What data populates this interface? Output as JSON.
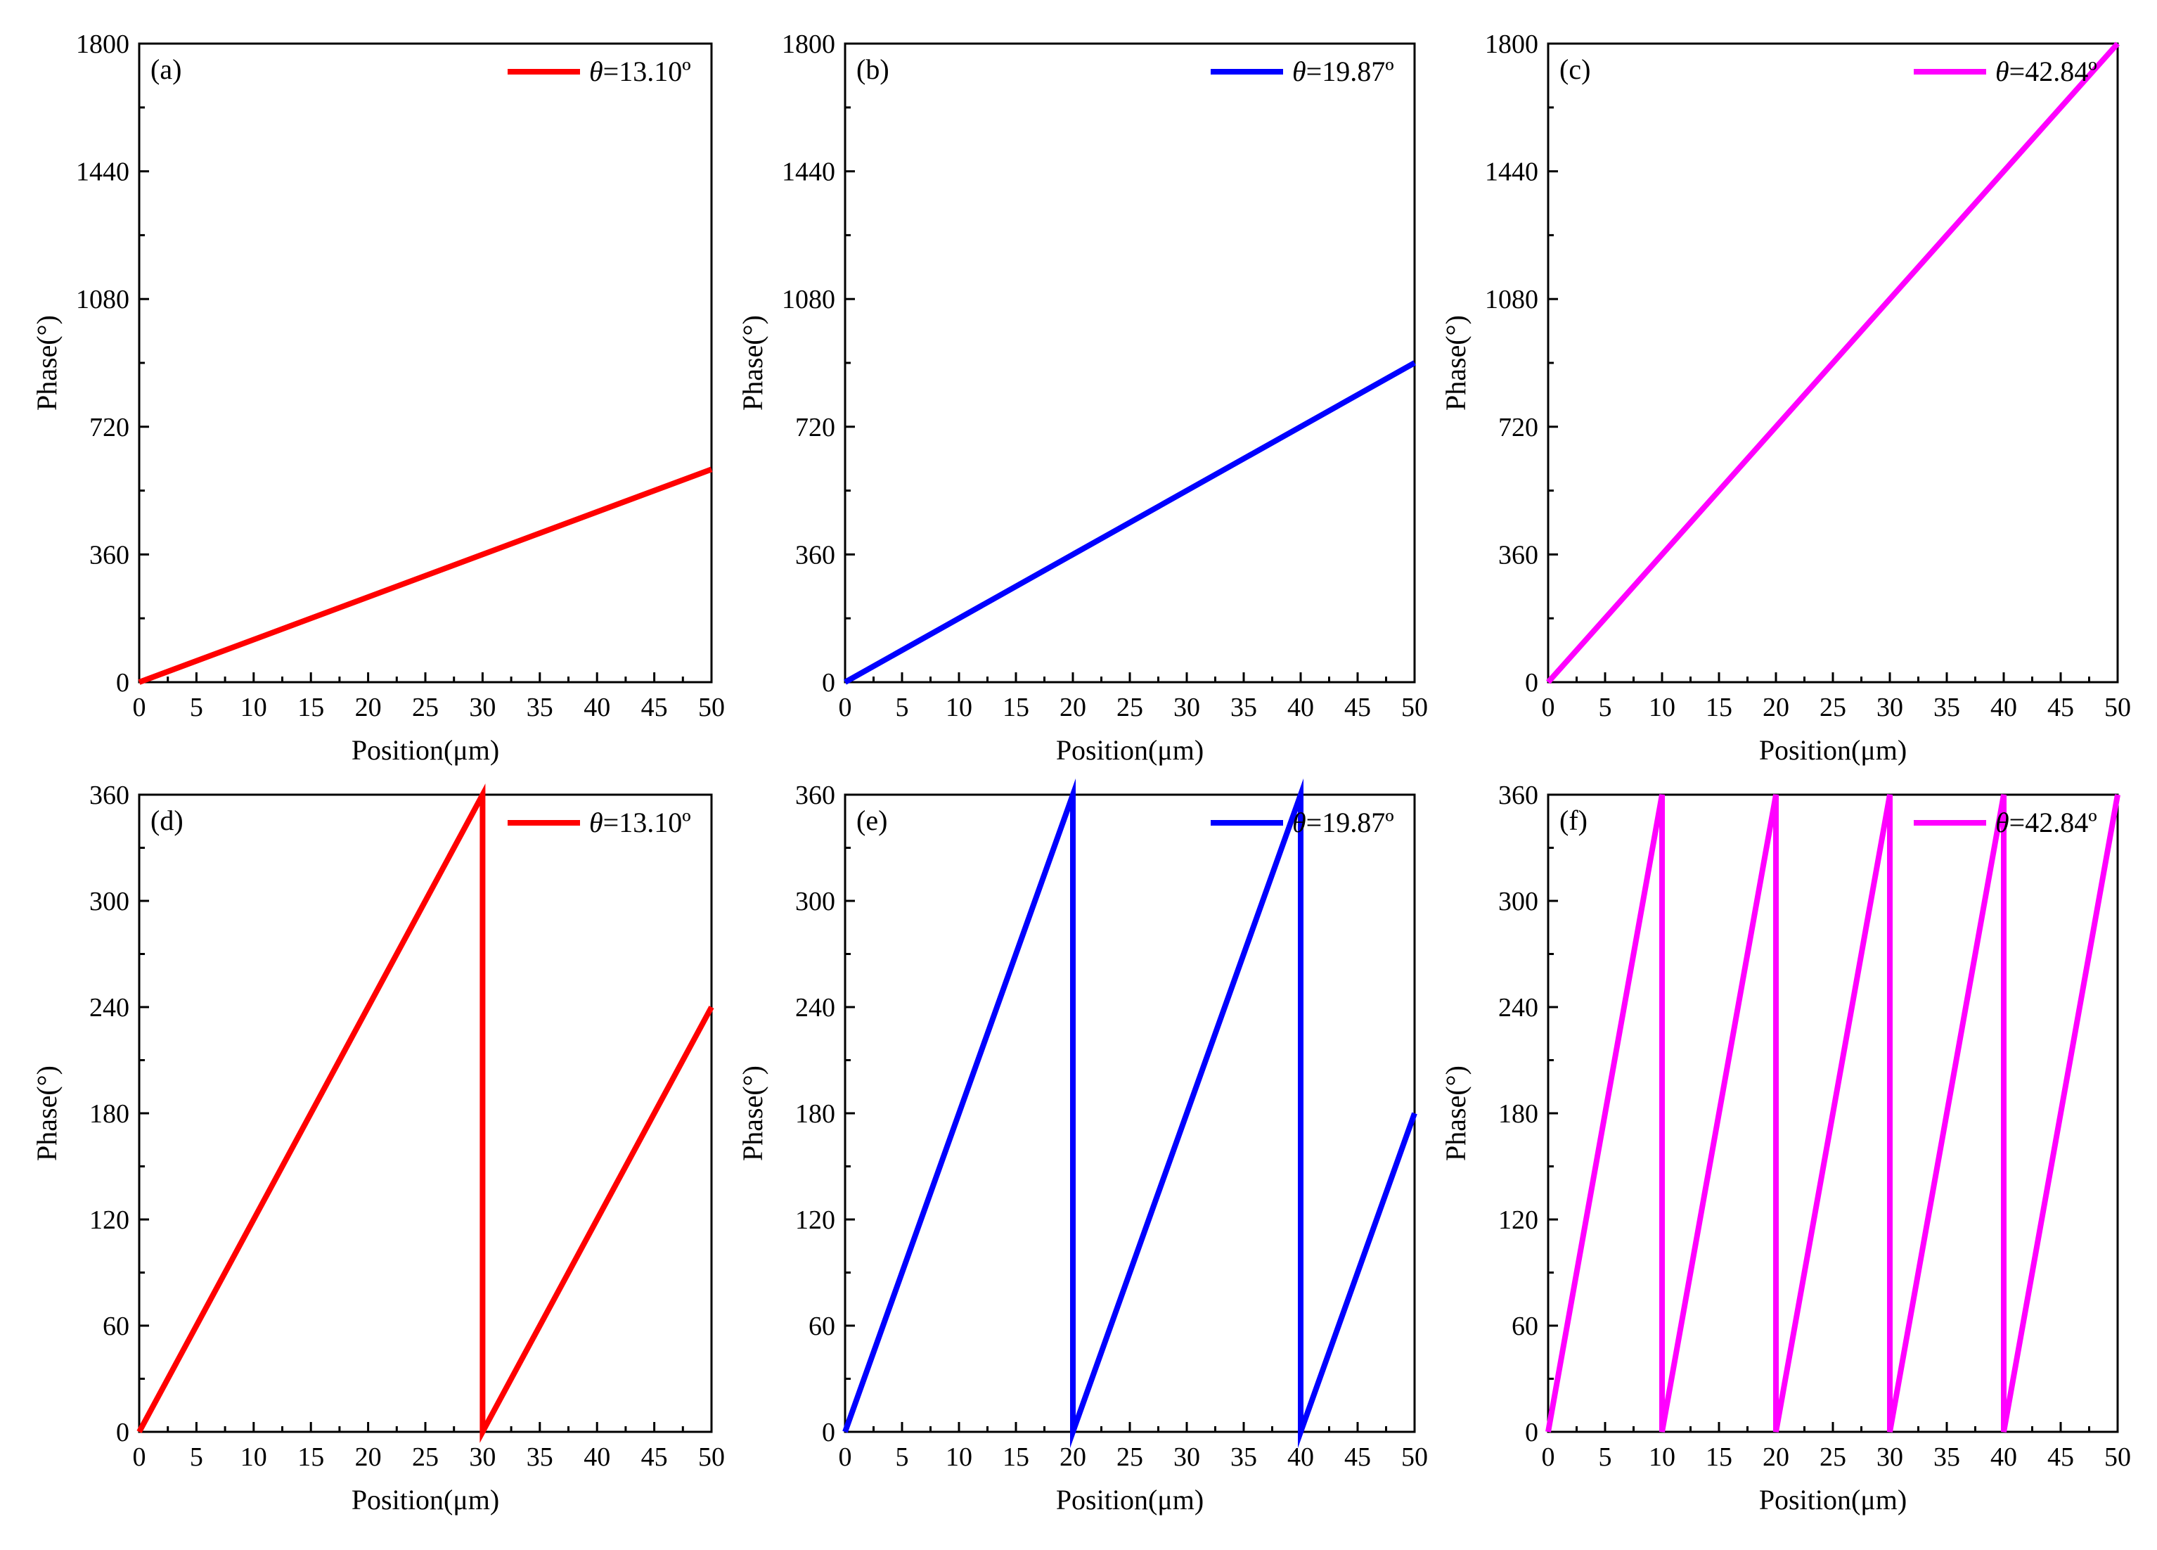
{
  "figure": {
    "background": "#ffffff"
  },
  "chart_data": [
    {
      "type": "line",
      "panel_label": "(a)",
      "xlabel": "Position(μm)",
      "ylabel": "Phase(°)",
      "xlim": [
        0,
        50
      ],
      "ylim": [
        0,
        1800
      ],
      "xticks": [
        0,
        5,
        10,
        15,
        20,
        25,
        30,
        35,
        40,
        45,
        50
      ],
      "xtick_labels": [
        "0",
        "5",
        "10",
        "15",
        "20",
        "25",
        "30",
        "35",
        "40",
        "45",
        "50"
      ],
      "yticks": [
        0,
        360,
        720,
        1080,
        1440,
        1800
      ],
      "ytick_labels": [
        "0",
        "360",
        "720",
        "1080",
        "1440",
        "1800"
      ],
      "series": [
        {
          "legend_symbol": "θ",
          "legend_value": "=13.10º",
          "color": "#ff0000",
          "x": [
            0,
            50
          ],
          "y": [
            0,
            600
          ]
        }
      ]
    },
    {
      "type": "line",
      "panel_label": "(b)",
      "xlabel": "Position(μm)",
      "ylabel": "Phase(°)",
      "xlim": [
        0,
        50
      ],
      "ylim": [
        0,
        1800
      ],
      "xticks": [
        0,
        5,
        10,
        15,
        20,
        25,
        30,
        35,
        40,
        45,
        50
      ],
      "xtick_labels": [
        "0",
        "5",
        "10",
        "15",
        "20",
        "25",
        "30",
        "35",
        "40",
        "45",
        "50"
      ],
      "yticks": [
        0,
        360,
        720,
        1080,
        1440,
        1800
      ],
      "ytick_labels": [
        "0",
        "360",
        "720",
        "1080",
        "1440",
        "1800"
      ],
      "series": [
        {
          "legend_symbol": "θ",
          "legend_value": "=19.87º",
          "color": "#0000ff",
          "x": [
            0,
            50
          ],
          "y": [
            0,
            900
          ]
        }
      ]
    },
    {
      "type": "line",
      "panel_label": "(c)",
      "xlabel": "Position(μm)",
      "ylabel": "Phase(°)",
      "xlim": [
        0,
        50
      ],
      "ylim": [
        0,
        1800
      ],
      "xticks": [
        0,
        5,
        10,
        15,
        20,
        25,
        30,
        35,
        40,
        45,
        50
      ],
      "xtick_labels": [
        "0",
        "5",
        "10",
        "15",
        "20",
        "25",
        "30",
        "35",
        "40",
        "45",
        "50"
      ],
      "yticks": [
        0,
        360,
        720,
        1080,
        1440,
        1800
      ],
      "ytick_labels": [
        "0",
        "360",
        "720",
        "1080",
        "1440",
        "1800"
      ],
      "series": [
        {
          "legend_symbol": "θ",
          "legend_value": "=42.84º",
          "color": "#ff00ff",
          "x": [
            0,
            50
          ],
          "y": [
            0,
            1800
          ]
        }
      ]
    },
    {
      "type": "line",
      "panel_label": "(d)",
      "xlabel": "Position(μm)",
      "ylabel": "Phase(°)",
      "xlim": [
        0,
        50
      ],
      "ylim": [
        0,
        360
      ],
      "xticks": [
        0,
        5,
        10,
        15,
        20,
        25,
        30,
        35,
        40,
        45,
        50
      ],
      "xtick_labels": [
        "0",
        "5",
        "10",
        "15",
        "20",
        "25",
        "30",
        "35",
        "40",
        "45",
        "50"
      ],
      "yticks": [
        0,
        60,
        120,
        180,
        240,
        300,
        360
      ],
      "ytick_labels": [
        "0",
        "60",
        "120",
        "180",
        "240",
        "300",
        "360"
      ],
      "series": [
        {
          "legend_symbol": "θ",
          "legend_value": "=13.10º",
          "color": "#ff0000",
          "x": [
            0,
            30,
            30,
            50
          ],
          "y": [
            0,
            360,
            0,
            240
          ]
        }
      ]
    },
    {
      "type": "line",
      "panel_label": "(e)",
      "xlabel": "Position(μm)",
      "ylabel": "Phase(°)",
      "xlim": [
        0,
        50
      ],
      "ylim": [
        0,
        360
      ],
      "xticks": [
        0,
        5,
        10,
        15,
        20,
        25,
        30,
        35,
        40,
        45,
        50
      ],
      "xtick_labels": [
        "0",
        "5",
        "10",
        "15",
        "20",
        "25",
        "30",
        "35",
        "40",
        "45",
        "50"
      ],
      "yticks": [
        0,
        60,
        120,
        180,
        240,
        300,
        360
      ],
      "ytick_labels": [
        "0",
        "60",
        "120",
        "180",
        "240",
        "300",
        "360"
      ],
      "series": [
        {
          "legend_symbol": "θ",
          "legend_value": "=19.87º",
          "color": "#0000ff",
          "x": [
            0,
            20,
            20,
            40,
            40,
            50
          ],
          "y": [
            0,
            360,
            0,
            360,
            0,
            180
          ]
        }
      ]
    },
    {
      "type": "line",
      "panel_label": "(f)",
      "xlabel": "Position(μm)",
      "ylabel": "Phase(°)",
      "xlim": [
        0,
        50
      ],
      "ylim": [
        0,
        360
      ],
      "xticks": [
        0,
        5,
        10,
        15,
        20,
        25,
        30,
        35,
        40,
        45,
        50
      ],
      "xtick_labels": [
        "0",
        "5",
        "10",
        "15",
        "20",
        "25",
        "30",
        "35",
        "40",
        "45",
        "50"
      ],
      "yticks": [
        0,
        60,
        120,
        180,
        240,
        300,
        360
      ],
      "ytick_labels": [
        "0",
        "60",
        "120",
        "180",
        "240",
        "300",
        "360"
      ],
      "series": [
        {
          "legend_symbol": "θ",
          "legend_value": "=42.84º",
          "color": "#ff00ff",
          "x": [
            0,
            10,
            10,
            20,
            20,
            30,
            30,
            40,
            40,
            50
          ],
          "y": [
            0,
            360,
            0,
            360,
            0,
            360,
            0,
            360,
            0,
            360
          ]
        }
      ]
    }
  ]
}
